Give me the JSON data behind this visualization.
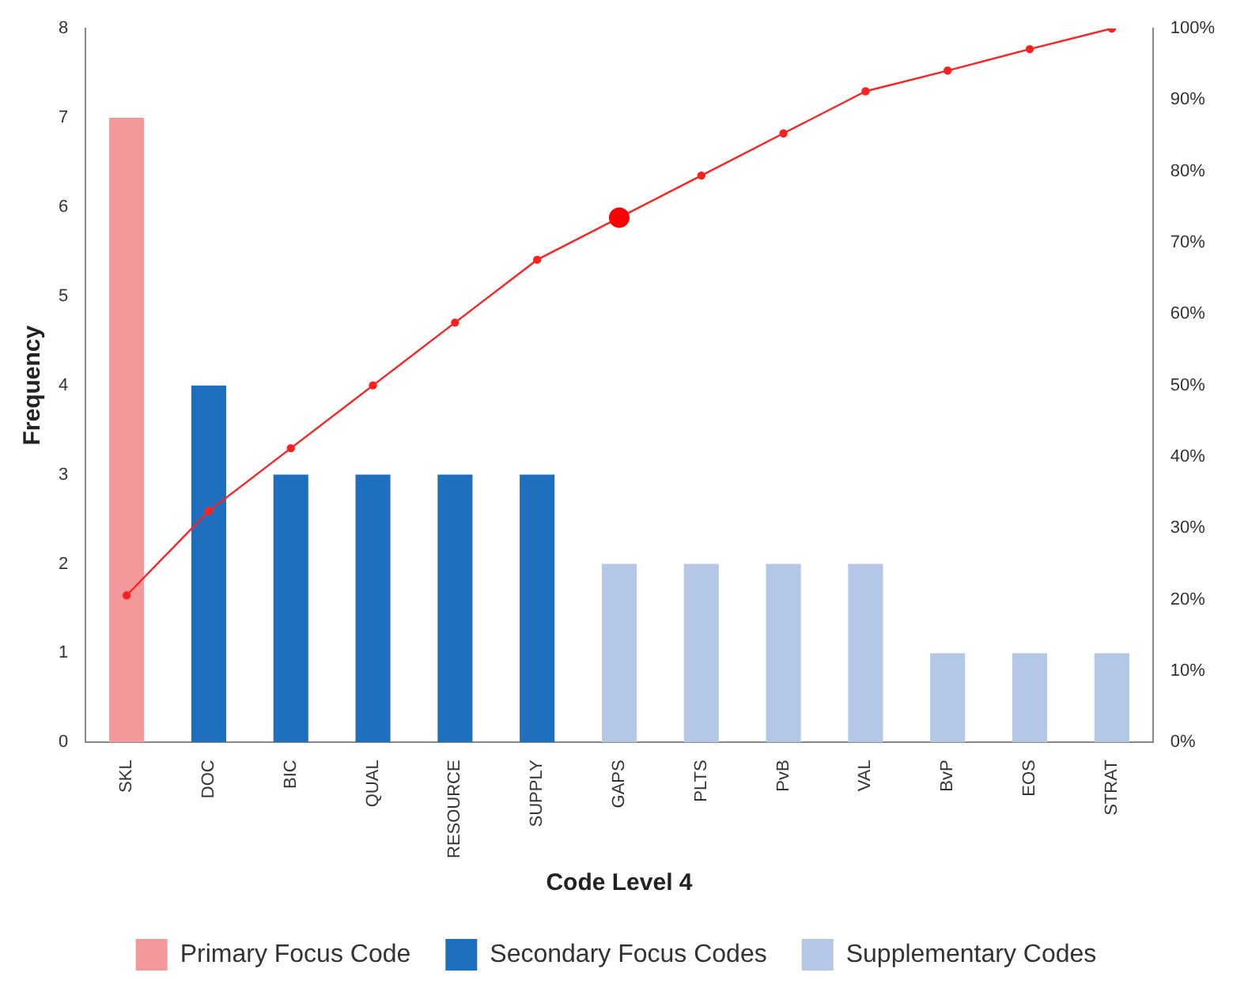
{
  "chart_data": {
    "type": "bar",
    "xlabel": "Code Level 4",
    "ylabel": "Frequency",
    "categories": [
      "SKL",
      "DOC",
      "BIC",
      "QUAL",
      "RESOURCE",
      "SUPPLY",
      "GAPS",
      "PLTS",
      "PvB",
      "VAL",
      "BvP",
      "EOS",
      "STRAT"
    ],
    "stacked": true,
    "series": [
      {
        "name": "Primary Focus Code",
        "color": "#f4999b",
        "values": [
          7,
          null,
          null,
          null,
          null,
          null,
          null,
          null,
          null,
          null,
          null,
          null,
          null
        ]
      },
      {
        "name": "Secondary Focus Codes",
        "color": "#1f6fbf",
        "values": [
          null,
          4,
          3,
          3,
          3,
          3,
          null,
          null,
          null,
          null,
          null,
          null,
          null
        ]
      },
      {
        "name": "Supplementary Codes",
        "color": "#b4c7e7",
        "values": [
          null,
          null,
          null,
          null,
          null,
          null,
          2,
          2,
          2,
          2,
          1,
          1,
          1
        ]
      },
      {
        "type": "line",
        "axis": "y2",
        "color": "#ff2020",
        "marker": "circle",
        "values": [
          20.6,
          32.4,
          41.2,
          50,
          58.8,
          67.6,
          73.5,
          79.4,
          85.3,
          91.2,
          94.1,
          97.1,
          100
        ]
      },
      {
        "type": "scatter",
        "axis": "y2",
        "color": "#ff0000",
        "marker": "circle",
        "x": [
          "GAPS"
        ],
        "values": [
          73.5
        ]
      }
    ],
    "ylim": [
      0,
      8
    ],
    "yticks": [
      0,
      1,
      2,
      3,
      4,
      5,
      6,
      7,
      8
    ],
    "y2lim": [
      0,
      100
    ],
    "y2ticks": [
      {
        "value": 0,
        "label": "0%"
      },
      {
        "value": 10,
        "label": "10%"
      },
      {
        "value": 20,
        "label": "20%"
      },
      {
        "value": 30,
        "label": "30%"
      },
      {
        "value": 40,
        "label": "40%"
      },
      {
        "value": 50,
        "label": "50%"
      },
      {
        "value": 60,
        "label": "60%"
      },
      {
        "value": 70,
        "label": "70%"
      },
      {
        "value": 80,
        "label": "80%"
      },
      {
        "value": 90,
        "label": "90%"
      },
      {
        "value": 100,
        "label": "100%"
      }
    ],
    "grid": false,
    "legend": "bottom"
  }
}
